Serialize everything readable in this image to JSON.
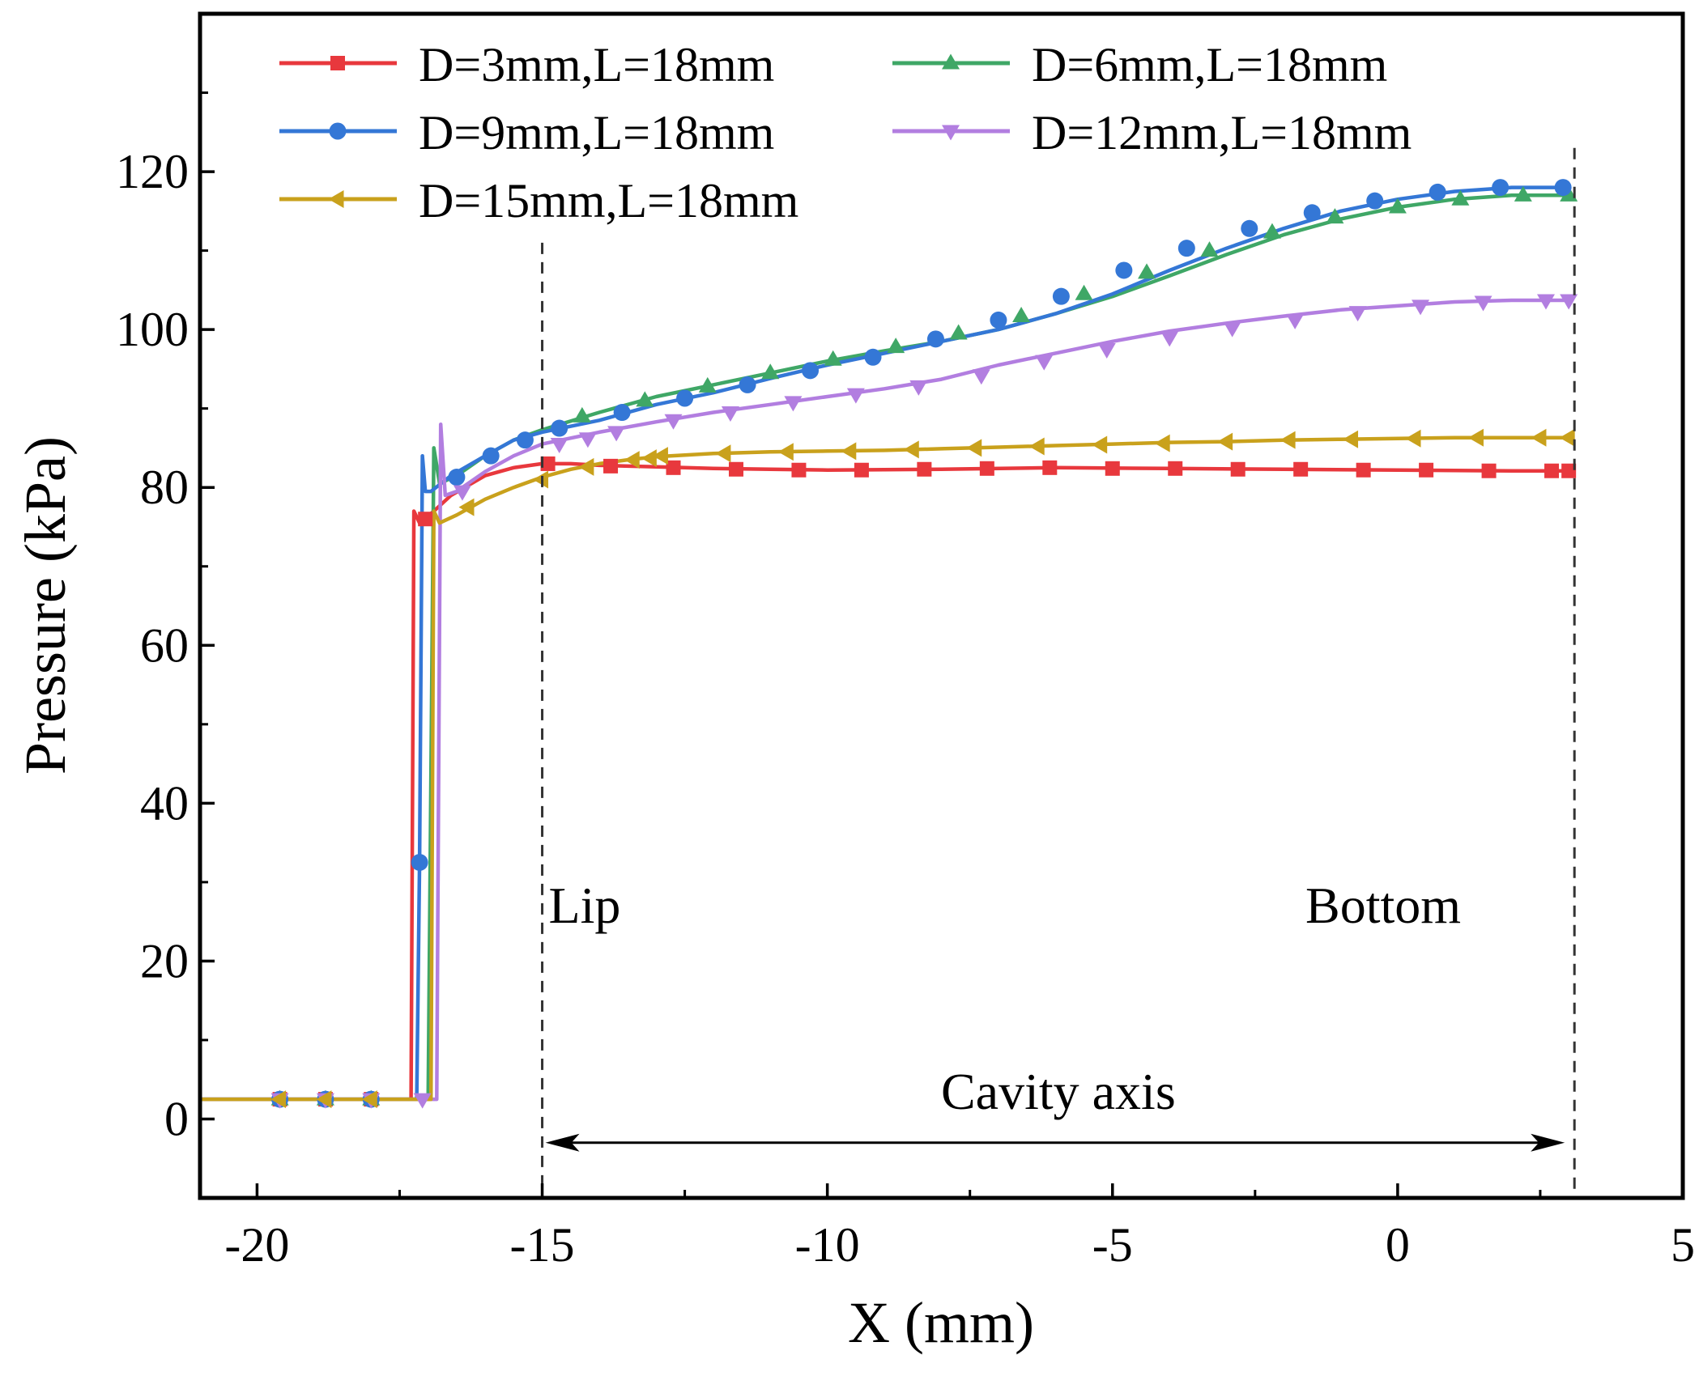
{
  "chart_data": {
    "type": "line",
    "title": "",
    "xlabel": "X (mm)",
    "ylabel": "Pressure (kPa)",
    "xlim": [
      -21,
      5
    ],
    "ylim": [
      -10,
      140
    ],
    "xticks": [
      -20,
      -15,
      -10,
      -5,
      0,
      5
    ],
    "yticks": [
      0,
      20,
      40,
      60,
      80,
      100,
      120
    ],
    "grid": false,
    "legend_position": "top-left",
    "series": [
      {
        "name": "D=3mm,L=18mm",
        "color": "#e8383d",
        "marker": "square",
        "x": [
          -21,
          -17.3,
          -17.25,
          -17.15,
          -16.9,
          -16.6,
          -16.0,
          -15.5,
          -15.0,
          -14.5,
          -14.0,
          -13.0,
          -12.0,
          -11.0,
          -10.0,
          -8.0,
          -6.0,
          -4.0,
          -2.0,
          0.0,
          2.0,
          3.0
        ],
        "y": [
          2.5,
          2.5,
          77,
          75.5,
          77,
          79,
          81.5,
          82.5,
          83,
          83,
          82.8,
          82.6,
          82.4,
          82.3,
          82.2,
          82.3,
          82.5,
          82.4,
          82.3,
          82.2,
          82.1,
          82.1
        ],
        "marker_x": [
          -19.6,
          -18.8,
          -18.0,
          -17.05,
          -14.9,
          -13.8,
          -12.7,
          -11.6,
          -10.5,
          -9.4,
          -8.3,
          -7.2,
          -6.1,
          -5.0,
          -3.9,
          -2.8,
          -1.7,
          -0.6,
          0.5,
          1.6,
          2.7,
          3.0
        ],
        "marker_y": [
          2.5,
          2.5,
          2.5,
          76,
          83,
          82.7,
          82.5,
          82.3,
          82.2,
          82.2,
          82.3,
          82.4,
          82.5,
          82.4,
          82.4,
          82.3,
          82.3,
          82.2,
          82.2,
          82.1,
          82.1,
          82.1
        ]
      },
      {
        "name": "D=6mm,L=18mm",
        "color": "#3fa766",
        "marker": "triangle-up",
        "x": [
          -21,
          -17.0,
          -16.9,
          -16.8,
          -16.5,
          -16.0,
          -15.5,
          -15.0,
          -14.0,
          -13.0,
          -12.0,
          -11.0,
          -10.0,
          -9.0,
          -8.0,
          -7.0,
          -6.0,
          -5.0,
          -4.0,
          -3.0,
          -2.0,
          -1.0,
          0.0,
          1.0,
          2.0,
          3.0
        ],
        "y": [
          2.5,
          2.5,
          85,
          80.5,
          81.5,
          84,
          86,
          87.3,
          89.5,
          91.5,
          93,
          94.5,
          96,
          97.3,
          98.5,
          100,
          102,
          104.2,
          106.8,
          109.5,
          112,
          114,
          115.5,
          116.5,
          117,
          117
        ],
        "marker_x": [
          -19.6,
          -18.8,
          -18.0,
          -14.3,
          -13.2,
          -12.1,
          -11.0,
          -9.9,
          -8.8,
          -7.7,
          -6.6,
          -5.5,
          -4.4,
          -3.3,
          -2.2,
          -1.1,
          0.0,
          1.1,
          2.2,
          3.0
        ],
        "marker_y": [
          2.5,
          2.5,
          2.5,
          89,
          91,
          92.8,
          94.5,
          96.2,
          97.8,
          99.5,
          101.7,
          104.5,
          107.2,
          110,
          112.3,
          114.2,
          115.5,
          116.5,
          117,
          117
        ]
      },
      {
        "name": "D=9mm,L=18mm",
        "color": "#3477d6",
        "marker": "circle",
        "x": [
          -21,
          -17.2,
          -17.15,
          -17.1,
          -17.05,
          -16.95,
          -16.6,
          -16.0,
          -15.5,
          -15.0,
          -14.0,
          -13.0,
          -12.0,
          -11.0,
          -10.0,
          -9.0,
          -8.0,
          -7.0,
          -6.0,
          -5.0,
          -4.0,
          -3.0,
          -2.0,
          -1.0,
          0.0,
          1.0,
          2.0,
          3.0
        ],
        "y": [
          2.5,
          2.5,
          32.5,
          84,
          79.5,
          79.5,
          81.5,
          84,
          86,
          87,
          88.5,
          90.5,
          92,
          93.8,
          95.5,
          97,
          98.5,
          100,
          102,
          104.5,
          107.5,
          110.3,
          112.8,
          115,
          116.5,
          117.5,
          118,
          118
        ],
        "marker_x": [
          -19.6,
          -18.8,
          -18.0,
          -17.15,
          -16.5,
          -15.9,
          -15.3,
          -14.7,
          -13.6,
          -12.5,
          -11.4,
          -10.3,
          -9.2,
          -8.1,
          -7.0,
          -5.9,
          -4.8,
          -3.7,
          -2.6,
          -1.5,
          -0.4,
          0.7,
          1.8,
          2.9
        ],
        "marker_y": [
          2.5,
          2.5,
          2.5,
          32.5,
          81.3,
          84,
          86,
          87.5,
          89.5,
          91.3,
          93,
          94.8,
          96.5,
          98.8,
          101.2,
          104.2,
          107.5,
          110.3,
          112.8,
          114.8,
          116.3,
          117.4,
          118,
          118
        ]
      },
      {
        "name": "D=12mm,L=18mm",
        "color": "#b27ee0",
        "marker": "triangle-down",
        "x": [
          -21,
          -16.85,
          -16.78,
          -16.7,
          -16.5,
          -16.0,
          -15.5,
          -15.0,
          -14.0,
          -13.0,
          -12.0,
          -11.0,
          -10.0,
          -9.0,
          -8.0,
          -7.0,
          -6.0,
          -5.0,
          -4.0,
          -3.0,
          -2.0,
          -1.0,
          0.0,
          1.0,
          2.0,
          3.0
        ],
        "y": [
          2.5,
          2.5,
          88,
          79,
          79.5,
          82,
          84,
          85.5,
          87,
          88.3,
          89.5,
          90.5,
          91.5,
          92.5,
          93.7,
          95.5,
          97,
          98.5,
          99.8,
          100.8,
          101.7,
          102.5,
          103,
          103.5,
          103.7,
          103.7
        ],
        "marker_x": [
          -19.6,
          -18.8,
          -18.0,
          -17.1,
          -16.4,
          -14.7,
          -14.2,
          -13.7,
          -12.7,
          -11.7,
          -10.6,
          -9.5,
          -8.4,
          -7.3,
          -6.2,
          -5.1,
          -4.0,
          -2.9,
          -1.8,
          -0.7,
          0.4,
          1.5,
          2.6,
          3.0
        ],
        "marker_y": [
          2.5,
          2.5,
          2.5,
          2.5,
          79.5,
          85.5,
          86.2,
          87,
          88.5,
          89.5,
          90.8,
          91.8,
          92.8,
          94.2,
          96,
          97.5,
          99,
          100.2,
          101.2,
          102.2,
          103,
          103.5,
          103.7,
          103.7
        ]
      },
      {
        "name": "D=15mm,L=18mm",
        "color": "#c9a11c",
        "marker": "triangle-left",
        "x": [
          -21,
          -16.95,
          -16.9,
          -16.8,
          -16.5,
          -16.0,
          -15.5,
          -15.0,
          -14.5,
          -14.0,
          -13.5,
          -13.0,
          -12.0,
          -11.0,
          -10.0,
          -9.0,
          -8.0,
          -7.0,
          -6.0,
          -5.0,
          -4.0,
          -3.0,
          -2.0,
          -1.0,
          0.0,
          1.0,
          2.0,
          3.0
        ],
        "y": [
          2.5,
          2.5,
          77,
          75.5,
          76.5,
          78.5,
          80,
          81.3,
          82.3,
          83,
          83.5,
          83.9,
          84.3,
          84.5,
          84.6,
          84.7,
          84.9,
          85.1,
          85.3,
          85.5,
          85.7,
          85.8,
          86,
          86.1,
          86.2,
          86.3,
          86.3,
          86.3
        ],
        "marker_x": [
          -19.6,
          -18.8,
          -18.0,
          -16.3,
          -15.0,
          -14.2,
          -13.4,
          -13.1,
          -12.9,
          -11.8,
          -10.7,
          -9.6,
          -8.5,
          -7.4,
          -6.3,
          -5.2,
          -4.1,
          -3.0,
          -1.9,
          -0.8,
          0.3,
          1.4,
          2.5,
          3.0
        ],
        "marker_y": [
          2.5,
          2.5,
          2.5,
          77.5,
          81,
          82.6,
          83.5,
          83.7,
          84,
          84.3,
          84.5,
          84.6,
          84.8,
          85,
          85.2,
          85.4,
          85.6,
          85.8,
          86,
          86.1,
          86.2,
          86.3,
          86.3,
          86.3
        ]
      }
    ],
    "annotations": {
      "lip_label": "Lip",
      "bottom_label": "Bottom",
      "axis_label": "Cavity axis",
      "lip_x": -15.0,
      "bottom_x": 3.1,
      "dashed_top_y": 123,
      "lip_dash_top_y": 111,
      "arrow_y": -3
    }
  }
}
